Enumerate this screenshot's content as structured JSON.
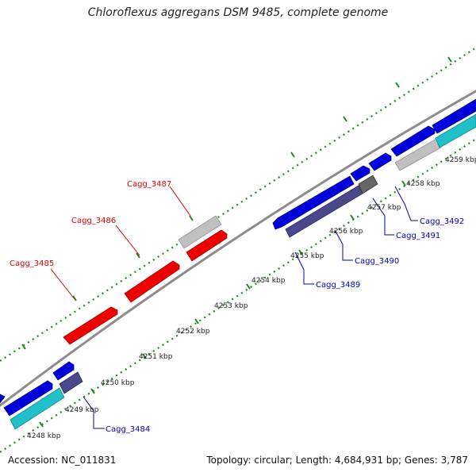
{
  "title": "Chloroflexus aggregans DSM 9485, complete genome",
  "footer": {
    "accession": "Accession: NC_011831",
    "summary": "Topology: circular; Length: 4,684,931 bp; Genes: 3,787"
  },
  "colors": {
    "forward_gene": "#ee0000",
    "forward_label": "#dd0000",
    "reverse_gene": "#0000dd",
    "reverse_label": "#0000bb",
    "navy_gene": "#48488a",
    "cyan_gene": "#20c0c8",
    "gray_gene": "#c0c0c0",
    "backbone": "#8c8c8c",
    "ticks": "#1a8a1a"
  },
  "scale_labels": [
    "4248 kbp",
    "4249 kbp",
    "4250 kbp",
    "4251 kbp",
    "4252 kbp",
    "4253 kbp",
    "4254 kbp",
    "4255 kbp",
    "4256 kbp",
    "4257 kbp",
    "4258 kbp",
    "4259 kbp"
  ],
  "gene_labels": {
    "g3484": "Cagg_3484",
    "g3485": "Cagg_3485",
    "g3486": "Cagg_3486",
    "g3487": "Cagg_3487",
    "g3489": "Cagg_3489",
    "g3490": "Cagg_3490",
    "g3491": "Cagg_3491",
    "g3492": "Cagg_3492"
  }
}
